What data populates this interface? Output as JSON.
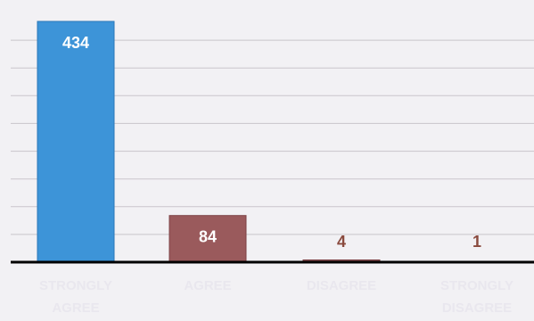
{
  "chart_data": {
    "type": "bar",
    "categories": [
      [
        "STRONGLY",
        "AGREE"
      ],
      [
        "AGREE"
      ],
      [
        "DISAGREE"
      ],
      [
        "STRONGLY",
        "DISAGREE"
      ]
    ],
    "values": [
      434,
      84,
      4,
      1
    ],
    "data_labels": [
      "434",
      "84",
      "4",
      "1"
    ],
    "colors": {
      "bar_colors": [
        "#3d94d8",
        "#9a5a5c",
        "#9a5a5c",
        "#9a5a5c"
      ],
      "value_label_inside": "#ffffff",
      "value_label_outside": "#8a4a3e",
      "category_label": "#e9e7ee",
      "axis": "#000000",
      "gridline": "#c9c5cb",
      "background": "#f2f1f4"
    },
    "ylim": [
      0,
      450
    ],
    "grid": true,
    "legend": "none"
  }
}
